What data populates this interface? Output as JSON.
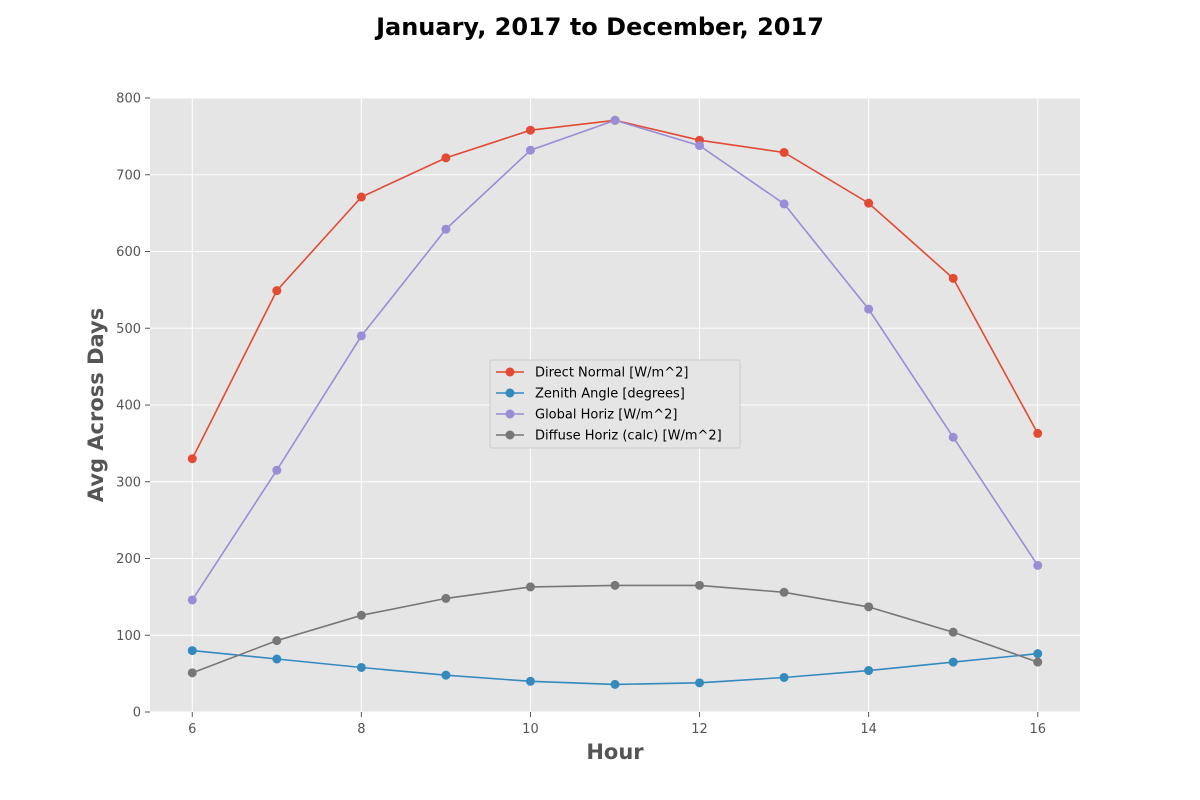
{
  "chart_data": {
    "type": "line",
    "title": "January, 2017 to December, 2017",
    "xlabel": "Hour",
    "ylabel": "Avg Across Days",
    "xlim": [
      5.5,
      16.5
    ],
    "ylim": [
      0,
      800
    ],
    "xticks": [
      6,
      8,
      10,
      12,
      14,
      16
    ],
    "yticks": [
      0,
      100,
      200,
      300,
      400,
      500,
      600,
      700,
      800
    ],
    "grid": true,
    "legend_position": "center",
    "x": [
      6,
      7,
      8,
      9,
      10,
      11,
      12,
      13,
      14,
      15,
      16
    ],
    "series": [
      {
        "name": "Direct Normal [W/m^2]",
        "color": "#e24a33",
        "values": [
          330,
          549,
          671,
          722,
          758,
          771,
          745,
          729,
          663,
          565,
          363
        ]
      },
      {
        "name": "Zenith Angle [degrees]",
        "color": "#348abd",
        "values": [
          80,
          69,
          58,
          48,
          40,
          36,
          38,
          45,
          54,
          65,
          76
        ]
      },
      {
        "name": "Global Horiz [W/m^2]",
        "color": "#988ed5",
        "values": [
          146,
          315,
          490,
          629,
          732,
          771,
          738,
          662,
          525,
          358,
          191
        ]
      },
      {
        "name": "Diffuse Horiz (calc) [W/m^2]",
        "color": "#777777",
        "values": [
          51,
          93,
          126,
          148,
          163,
          165,
          165,
          156,
          137,
          104,
          65
        ]
      }
    ]
  }
}
